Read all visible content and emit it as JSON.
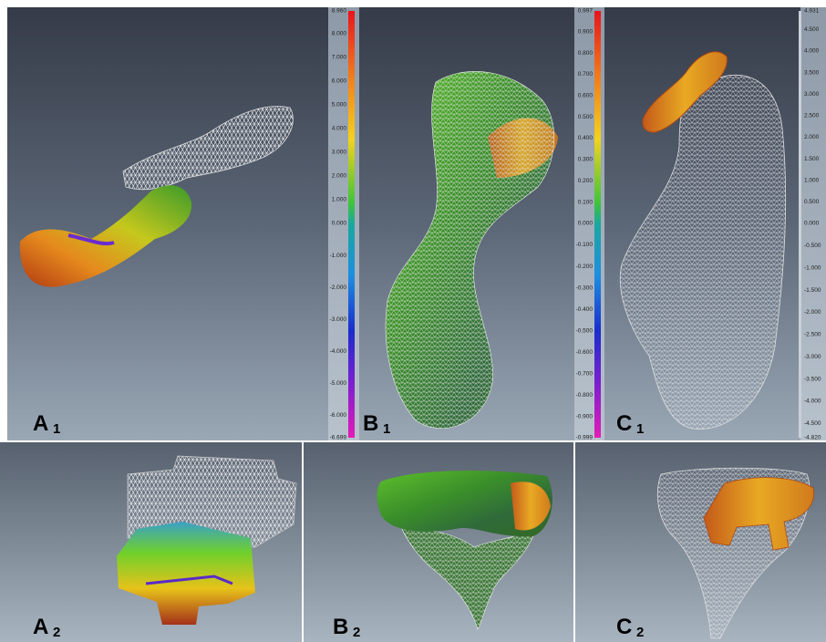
{
  "panels": [
    {
      "letter": "A",
      "subscript": "1"
    },
    {
      "letter": "B",
      "subscript": "1"
    },
    {
      "letter": "C",
      "subscript": "1"
    },
    {
      "letter": "A",
      "subscript": "2"
    },
    {
      "letter": "B",
      "subscript": "2"
    },
    {
      "letter": "C",
      "subscript": "2"
    }
  ],
  "colorbars": [
    {
      "labels": [
        "8.960",
        "8.000",
        "7.000",
        "6.000",
        "5.000",
        "4.000",
        "3.000",
        "2.000",
        "1.000",
        "0.000",
        "-1.000",
        "-2.000",
        "-3.000",
        "-4.000",
        "-5.000",
        "-6.000",
        "-6.699"
      ]
    },
    {
      "labels": [
        "0.997",
        "0.900",
        "0.800",
        "0.700",
        "0.600",
        "0.500",
        "0.400",
        "0.300",
        "0.200",
        "0.100",
        "0.000",
        "-0.100",
        "-0.200",
        "-0.300",
        "-0.400",
        "-0.500",
        "-0.600",
        "-0.700",
        "-0.800",
        "-0.900",
        "-0.999"
      ]
    },
    {
      "labels": [
        "4.931",
        "4.500",
        "4.000",
        "3.500",
        "3.000",
        "2.500",
        "2.000",
        "1.500",
        "1.000",
        "0.500",
        "0.000",
        "-0.500",
        "-1.000",
        "-1.500",
        "-2.000",
        "-2.500",
        "-3.000",
        "-3.500",
        "-4.000",
        "-4.500",
        "-4.820"
      ]
    }
  ]
}
